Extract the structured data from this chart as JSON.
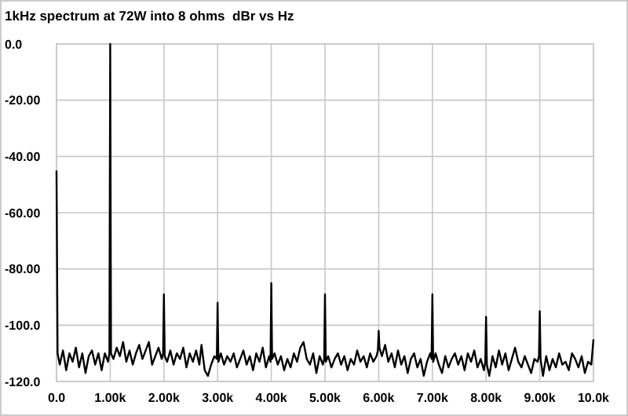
{
  "chart_data": {
    "type": "line",
    "title": "1kHz spectrum at 72W into 8 ohms  dBr vs Hz",
    "xlim": [
      0,
      10000
    ],
    "xticks": [
      {
        "value": 0,
        "label": "0.0"
      },
      {
        "value": 1000,
        "label": "1.00k"
      },
      {
        "value": 2000,
        "label": "2.00k"
      },
      {
        "value": 3000,
        "label": "3.00k"
      },
      {
        "value": 4000,
        "label": "4.00k"
      },
      {
        "value": 5000,
        "label": "5.00k"
      },
      {
        "value": 6000,
        "label": "6.00k"
      },
      {
        "value": 7000,
        "label": "7.00k"
      },
      {
        "value": 8000,
        "label": "8.00k"
      },
      {
        "value": 9000,
        "label": "9.00k"
      },
      {
        "value": 10000,
        "label": "10.0k"
      }
    ],
    "ylim": [
      -120,
      0
    ],
    "yticks": [
      {
        "value": 0,
        "label": "0.0"
      },
      {
        "value": -20,
        "label": "-20.00"
      },
      {
        "value": -40,
        "label": "-40.00"
      },
      {
        "value": -60,
        "label": "-60.00"
      },
      {
        "value": -80,
        "label": "-80.00"
      },
      {
        "value": -100,
        "label": "-100.0"
      },
      {
        "value": -120,
        "label": "-120.0"
      }
    ],
    "grid": true,
    "series": [
      {
        "color": "#000000",
        "x": [
          0,
          20,
          60,
          120,
          180,
          240,
          300,
          360,
          420,
          480,
          540,
          600,
          660,
          720,
          780,
          840,
          900,
          960,
          985,
          1000,
          1015,
          1060,
          1120,
          1180,
          1240,
          1300,
          1360,
          1420,
          1480,
          1540,
          1600,
          1660,
          1720,
          1780,
          1840,
          1900,
          1960,
          1985,
          2000,
          2015,
          2060,
          2120,
          2180,
          2240,
          2300,
          2360,
          2420,
          2480,
          2540,
          2600,
          2660,
          2700,
          2760,
          2820,
          2880,
          2940,
          2985,
          3000,
          3015,
          3060,
          3120,
          3180,
          3240,
          3300,
          3360,
          3420,
          3480,
          3540,
          3600,
          3660,
          3720,
          3780,
          3840,
          3900,
          3960,
          3985,
          4000,
          4015,
          4060,
          4120,
          4180,
          4240,
          4300,
          4360,
          4420,
          4480,
          4540,
          4600,
          4660,
          4720,
          4780,
          4840,
          4900,
          4960,
          4985,
          5000,
          5015,
          5060,
          5120,
          5180,
          5240,
          5300,
          5360,
          5420,
          5480,
          5540,
          5600,
          5660,
          5720,
          5780,
          5840,
          5900,
          5960,
          5985,
          6000,
          6015,
          6060,
          6120,
          6180,
          6240,
          6300,
          6360,
          6420,
          6480,
          6540,
          6600,
          6660,
          6720,
          6780,
          6840,
          6900,
          6960,
          6985,
          7000,
          7015,
          7060,
          7120,
          7180,
          7240,
          7300,
          7360,
          7420,
          7480,
          7540,
          7600,
          7660,
          7720,
          7780,
          7840,
          7900,
          7960,
          7985,
          8000,
          8015,
          8060,
          8120,
          8180,
          8240,
          8300,
          8360,
          8420,
          8480,
          8540,
          8600,
          8660,
          8720,
          8780,
          8840,
          8900,
          8960,
          8985,
          9000,
          9015,
          9060,
          9120,
          9180,
          9240,
          9300,
          9360,
          9420,
          9480,
          9540,
          9600,
          9660,
          9720,
          9780,
          9840,
          9900,
          9960,
          10000
        ],
        "values": [
          -45,
          -110,
          -114,
          -109,
          -116,
          -110,
          -113,
          -108,
          -115,
          -110,
          -117,
          -111,
          -109,
          -114,
          -110,
          -116,
          -110,
          -113,
          -110,
          0,
          -110,
          -112,
          -108,
          -111,
          -106,
          -113,
          -109,
          -114,
          -110,
          -107,
          -112,
          -109,
          -106,
          -114,
          -111,
          -108,
          -112,
          -110,
          -89,
          -111,
          -113,
          -109,
          -114,
          -110,
          -112,
          -108,
          -115,
          -110,
          -113,
          -109,
          -114,
          -107,
          -116,
          -118,
          -114,
          -111,
          -112,
          -92,
          -113,
          -110,
          -114,
          -111,
          -113,
          -110,
          -115,
          -112,
          -109,
          -114,
          -111,
          -116,
          -110,
          -113,
          -108,
          -115,
          -111,
          -113,
          -85,
          -112,
          -110,
          -114,
          -111,
          -116,
          -112,
          -115,
          -110,
          -113,
          -108,
          -106,
          -112,
          -114,
          -110,
          -117,
          -111,
          -114,
          -112,
          -89,
          -113,
          -111,
          -115,
          -112,
          -110,
          -114,
          -111,
          -116,
          -112,
          -114,
          -109,
          -113,
          -111,
          -115,
          -110,
          -113,
          -111,
          -109,
          -102,
          -108,
          -111,
          -107,
          -113,
          -110,
          -115,
          -109,
          -114,
          -111,
          -117,
          -112,
          -110,
          -115,
          -112,
          -118,
          -113,
          -110,
          -112,
          -89,
          -113,
          -110,
          -114,
          -117,
          -111,
          -115,
          -112,
          -110,
          -114,
          -111,
          -116,
          -110,
          -113,
          -109,
          -115,
          -112,
          -116,
          -113,
          -97,
          -114,
          -118,
          -111,
          -115,
          -109,
          -114,
          -110,
          -116,
          -112,
          -108,
          -113,
          -115,
          -111,
          -114,
          -117,
          -112,
          -113,
          -111,
          -95,
          -112,
          -118,
          -111,
          -116,
          -112,
          -115,
          -110,
          -114,
          -113,
          -116,
          -110,
          -112,
          -115,
          -111,
          -117,
          -113,
          -114,
          -105
        ]
      }
    ]
  }
}
